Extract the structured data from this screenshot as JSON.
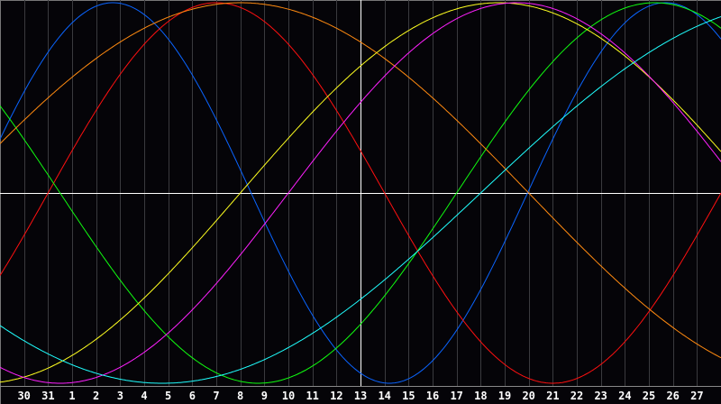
{
  "chart_data": {
    "type": "line",
    "x_tick_labels": [
      "30",
      "31",
      "1",
      "2",
      "3",
      "4",
      "5",
      "6",
      "7",
      "8",
      "9",
      "10",
      "11",
      "12",
      "13",
      "14",
      "15",
      "16",
      "17",
      "18",
      "19",
      "20",
      "21",
      "22",
      "23",
      "24",
      "25",
      "26",
      "27"
    ],
    "x_range_days": [
      -1.0,
      28.0
    ],
    "ylim": [
      -1,
      1
    ],
    "grid": true,
    "highlighted_day": "13",
    "background": "#050408",
    "series": [
      {
        "color": "#0a64ff",
        "period_days": 23,
        "peak_day": 2.7
      },
      {
        "color": "#ff1010",
        "period_days": 28,
        "peak_day": 7.0
      },
      {
        "color": "#10ff10",
        "period_days": 33,
        "peak_day": 25.25
      },
      {
        "color": "#ff8a10",
        "period_days": 48,
        "peak_day": 8.0
      },
      {
        "color": "#ffff20",
        "period_days": 43,
        "peak_day": 18.75
      },
      {
        "color": "#ff20ff",
        "period_days": 38,
        "peak_day": 19.5
      },
      {
        "color": "#20ffff",
        "period_days": 53,
        "peak_day": 31.25
      }
    ]
  }
}
